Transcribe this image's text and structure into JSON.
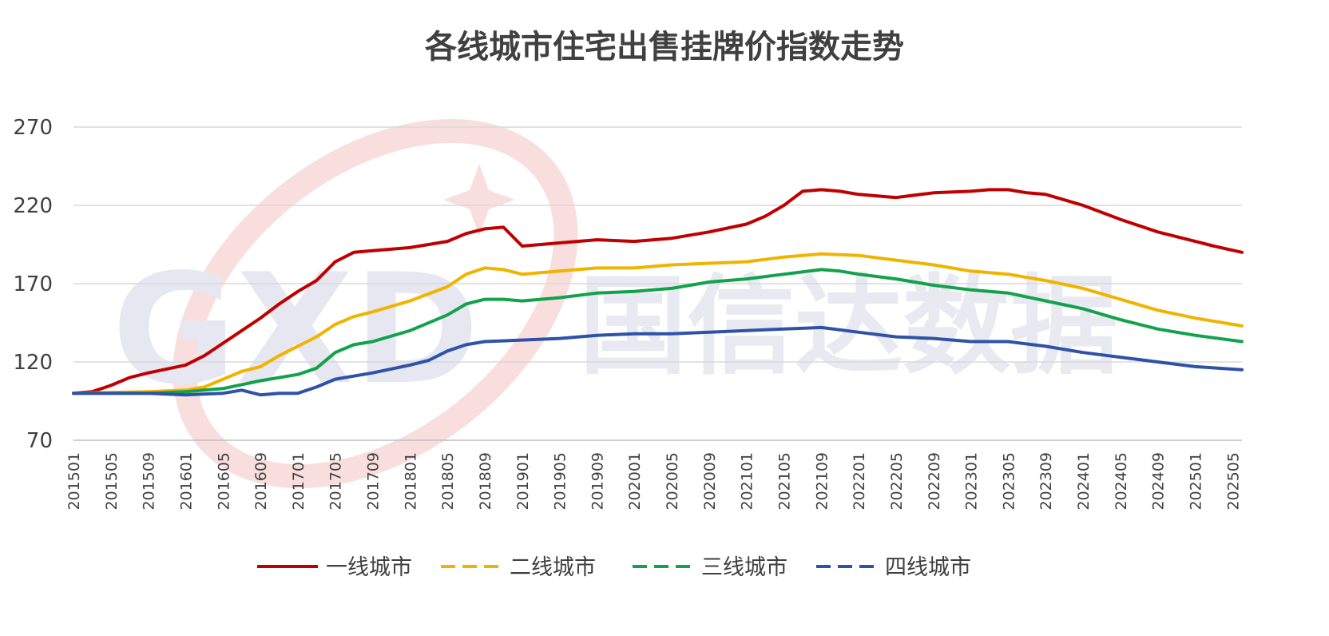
{
  "watermark": {
    "logo_letters": "GXD",
    "text": "国信达数据"
  },
  "chart_data": {
    "type": "line",
    "title": "各线城市住宅出售挂牌价指数走势",
    "xlabel": "",
    "ylabel": "",
    "ylim": [
      70,
      270
    ],
    "yticks": [
      70,
      120,
      170,
      220,
      270
    ],
    "grid": true,
    "legend_position": "bottom",
    "x_start": "201501",
    "x_end": "202506",
    "xtick_labels": [
      "201501",
      "201505",
      "201509",
      "201601",
      "201605",
      "201609",
      "201701",
      "201705",
      "201709",
      "201801",
      "201805",
      "201809",
      "201901",
      "201905",
      "201909",
      "202001",
      "202005",
      "202009",
      "202101",
      "202105",
      "202109",
      "202201",
      "202205",
      "202209",
      "202301",
      "202305",
      "202309",
      "202401",
      "202405",
      "202409",
      "202501",
      "202505"
    ],
    "series": [
      {
        "name": "一线城市",
        "color": "#C00000",
        "points": [
          [
            "201501",
            100
          ],
          [
            "201503",
            101
          ],
          [
            "201505",
            105
          ],
          [
            "201507",
            110
          ],
          [
            "201509",
            113
          ],
          [
            "201601",
            118
          ],
          [
            "201603",
            124
          ],
          [
            "201605",
            132
          ],
          [
            "201607",
            140
          ],
          [
            "201609",
            148
          ],
          [
            "201611",
            157
          ],
          [
            "201701",
            165
          ],
          [
            "201703",
            172
          ],
          [
            "201705",
            184
          ],
          [
            "201707",
            190
          ],
          [
            "201709",
            191
          ],
          [
            "201801",
            193
          ],
          [
            "201803",
            195
          ],
          [
            "201805",
            197
          ],
          [
            "201807",
            202
          ],
          [
            "201809",
            205
          ],
          [
            "201811",
            206
          ],
          [
            "201901",
            194
          ],
          [
            "201905",
            196
          ],
          [
            "201909",
            198
          ],
          [
            "202001",
            197
          ],
          [
            "202005",
            199
          ],
          [
            "202009",
            203
          ],
          [
            "202101",
            208
          ],
          [
            "202103",
            213
          ],
          [
            "202105",
            220
          ],
          [
            "202107",
            229
          ],
          [
            "202109",
            230
          ],
          [
            "202111",
            229
          ],
          [
            "202201",
            227
          ],
          [
            "202205",
            225
          ],
          [
            "202209",
            228
          ],
          [
            "202301",
            229
          ],
          [
            "202303",
            230
          ],
          [
            "202305",
            230
          ],
          [
            "202307",
            228
          ],
          [
            "202309",
            227
          ],
          [
            "202401",
            220
          ],
          [
            "202405",
            211
          ],
          [
            "202409",
            203
          ],
          [
            "202501",
            197
          ],
          [
            "202503",
            194
          ],
          [
            "202506",
            190
          ]
        ]
      },
      {
        "name": "二线城市",
        "color": "#F0B400",
        "points": [
          [
            "201501",
            100
          ],
          [
            "201509",
            101
          ],
          [
            "201601",
            102
          ],
          [
            "201603",
            104
          ],
          [
            "201605",
            109
          ],
          [
            "201607",
            114
          ],
          [
            "201609",
            117
          ],
          [
            "201611",
            124
          ],
          [
            "201701",
            130
          ],
          [
            "201703",
            136
          ],
          [
            "201705",
            144
          ],
          [
            "201707",
            149
          ],
          [
            "201709",
            152
          ],
          [
            "201801",
            159
          ],
          [
            "201805",
            168
          ],
          [
            "201807",
            176
          ],
          [
            "201809",
            180
          ],
          [
            "201811",
            179
          ],
          [
            "201901",
            176
          ],
          [
            "201905",
            178
          ],
          [
            "201909",
            180
          ],
          [
            "202001",
            180
          ],
          [
            "202005",
            182
          ],
          [
            "202009",
            183
          ],
          [
            "202101",
            184
          ],
          [
            "202105",
            187
          ],
          [
            "202109",
            189
          ],
          [
            "202201",
            188
          ],
          [
            "202205",
            185
          ],
          [
            "202209",
            182
          ],
          [
            "202301",
            178
          ],
          [
            "202305",
            176
          ],
          [
            "202309",
            172
          ],
          [
            "202401",
            167
          ],
          [
            "202405",
            160
          ],
          [
            "202409",
            153
          ],
          [
            "202501",
            148
          ],
          [
            "202506",
            143
          ]
        ]
      },
      {
        "name": "三线城市",
        "color": "#12A24B",
        "points": [
          [
            "201501",
            100
          ],
          [
            "201509",
            100
          ],
          [
            "201601",
            101
          ],
          [
            "201605",
            103
          ],
          [
            "201609",
            108
          ],
          [
            "201701",
            112
          ],
          [
            "201703",
            116
          ],
          [
            "201705",
            126
          ],
          [
            "201707",
            131
          ],
          [
            "201709",
            133
          ],
          [
            "201801",
            140
          ],
          [
            "201805",
            150
          ],
          [
            "201807",
            157
          ],
          [
            "201809",
            160
          ],
          [
            "201811",
            160
          ],
          [
            "201901",
            159
          ],
          [
            "201905",
            161
          ],
          [
            "201909",
            164
          ],
          [
            "202001",
            165
          ],
          [
            "202005",
            167
          ],
          [
            "202009",
            171
          ],
          [
            "202101",
            173
          ],
          [
            "202105",
            176
          ],
          [
            "202109",
            179
          ],
          [
            "202111",
            178
          ],
          [
            "202201",
            176
          ],
          [
            "202205",
            173
          ],
          [
            "202209",
            169
          ],
          [
            "202301",
            166
          ],
          [
            "202305",
            164
          ],
          [
            "202309",
            159
          ],
          [
            "202401",
            154
          ],
          [
            "202405",
            147
          ],
          [
            "202409",
            141
          ],
          [
            "202501",
            137
          ],
          [
            "202506",
            133
          ]
        ]
      },
      {
        "name": "四线城市",
        "color": "#2E52A8",
        "points": [
          [
            "201501",
            100
          ],
          [
            "201509",
            100
          ],
          [
            "201601",
            99
          ],
          [
            "201605",
            100
          ],
          [
            "201607",
            102
          ],
          [
            "201609",
            99
          ],
          [
            "201611",
            100
          ],
          [
            "201701",
            100
          ],
          [
            "201703",
            104
          ],
          [
            "201705",
            109
          ],
          [
            "201709",
            113
          ],
          [
            "201801",
            118
          ],
          [
            "201803",
            121
          ],
          [
            "201805",
            127
          ],
          [
            "201807",
            131
          ],
          [
            "201809",
            133
          ],
          [
            "201901",
            134
          ],
          [
            "201905",
            135
          ],
          [
            "201909",
            137
          ],
          [
            "202001",
            138
          ],
          [
            "202005",
            138
          ],
          [
            "202009",
            139
          ],
          [
            "202101",
            140
          ],
          [
            "202105",
            141
          ],
          [
            "202109",
            142
          ],
          [
            "202201",
            139
          ],
          [
            "202205",
            136
          ],
          [
            "202209",
            135
          ],
          [
            "202301",
            133
          ],
          [
            "202305",
            133
          ],
          [
            "202309",
            130
          ],
          [
            "202401",
            126
          ],
          [
            "202405",
            123
          ],
          [
            "202409",
            120
          ],
          [
            "202501",
            117
          ],
          [
            "202506",
            115
          ]
        ]
      }
    ]
  }
}
